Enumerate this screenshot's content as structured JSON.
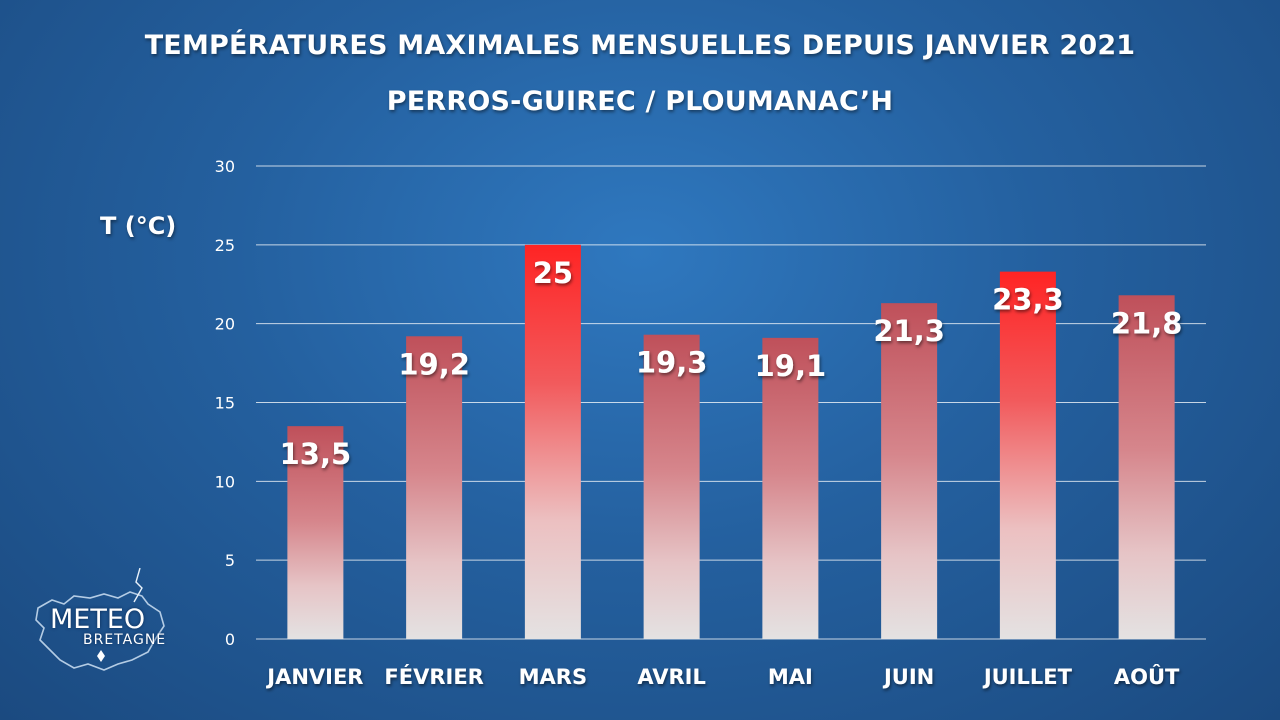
{
  "chart_data": {
    "type": "bar",
    "title": "TEMPÉRATURES MAXIMALES MENSUELLES DEPUIS JANVIER 2021",
    "subtitle": "PERROS-GUIREC / PLOUMANAC’H",
    "ylabel": "T (°C)",
    "xlabel": "",
    "categories": [
      "JANVIER",
      "FÉVRIER",
      "MARS",
      "AVRIL",
      "MAI",
      "JUIN",
      "JUILLET",
      "AOÛT"
    ],
    "values": [
      13.5,
      19.2,
      25,
      19.3,
      19.1,
      21.3,
      23.3,
      21.8
    ],
    "value_labels": [
      "13,5",
      "19,2",
      "25",
      "19,3",
      "19,1",
      "21,3",
      "23,3",
      "21,8"
    ],
    "highlighted": [
      false,
      false,
      true,
      false,
      false,
      false,
      true,
      false
    ],
    "ylim": [
      0,
      30
    ],
    "yticks": [
      0,
      5,
      10,
      15,
      20,
      25,
      30
    ],
    "grid": true,
    "legend": "none",
    "colors": {
      "bar_top": "#c0535c",
      "bar_top_highlight": "#ff2a2a",
      "bar_bottom": "#e6e3e3",
      "grid": "#ffffff",
      "text": "#ffffff"
    }
  },
  "logo": {
    "line1": "METEO",
    "line2": "BRETAGNE"
  }
}
